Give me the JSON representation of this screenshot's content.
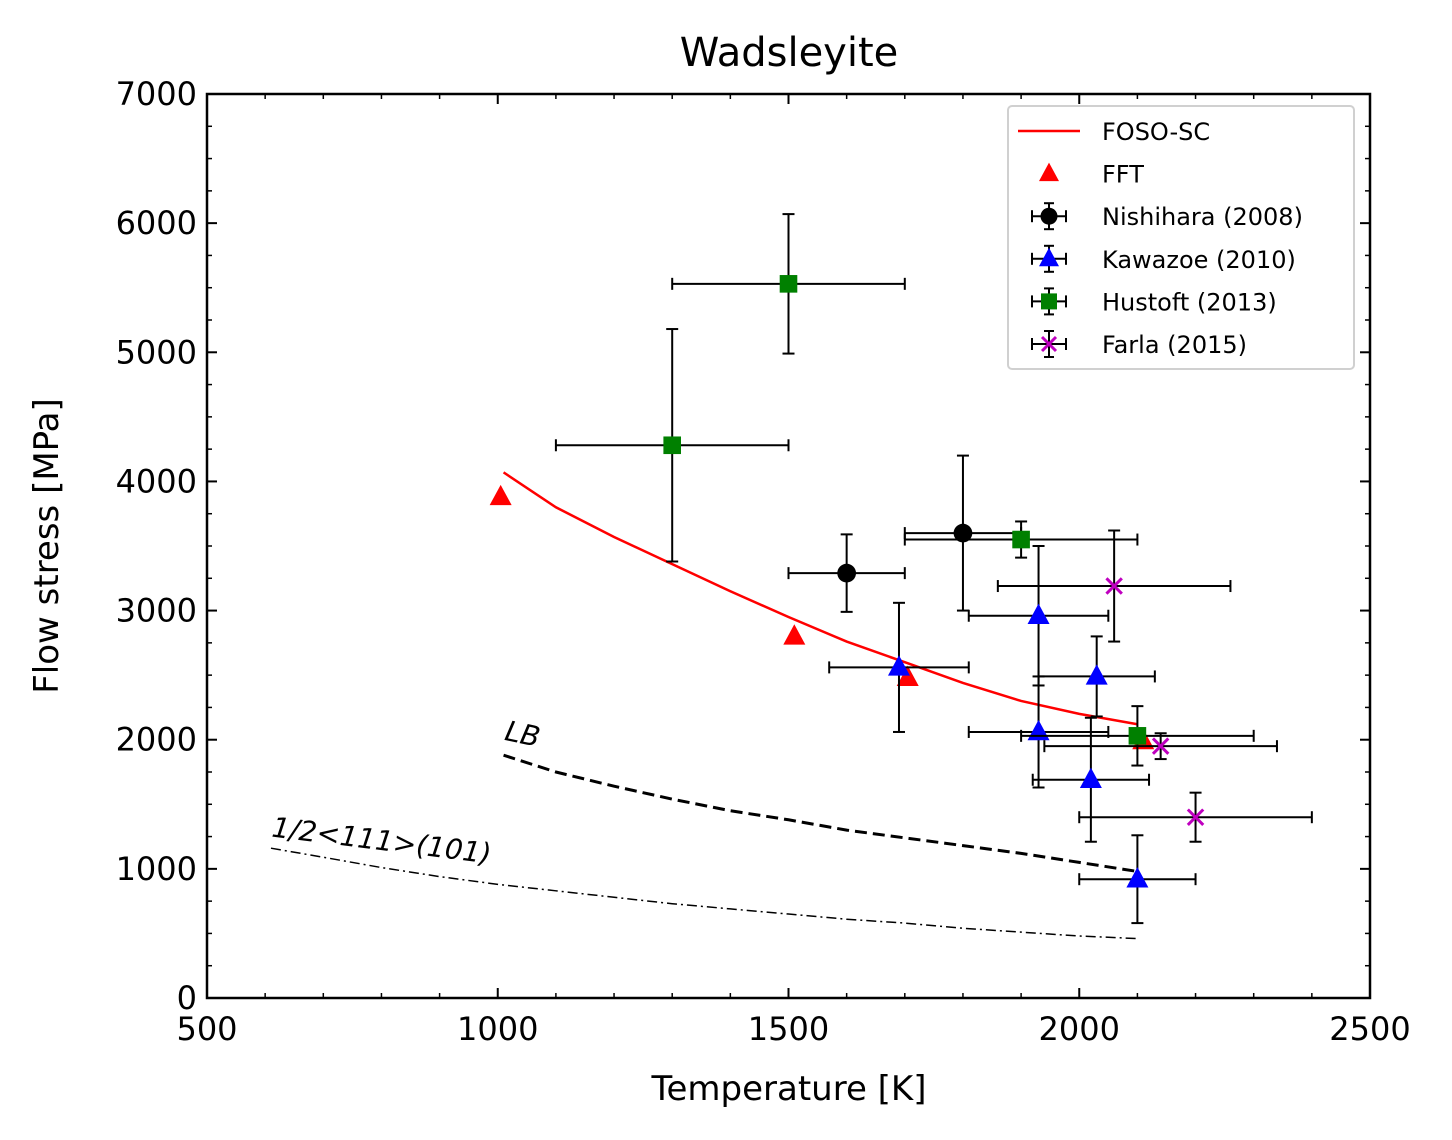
{
  "chart_data": {
    "type": "scatter",
    "title": "Wadsleyite",
    "xlabel": "Temperature [K]",
    "ylabel": "Flow stress [MPa]",
    "xlim": [
      500,
      2500
    ],
    "ylim": [
      0,
      7000
    ],
    "xticks": [
      500,
      1000,
      1500,
      2000,
      2500
    ],
    "yticks": [
      0,
      1000,
      2000,
      3000,
      4000,
      5000,
      6000,
      7000
    ],
    "xtick_labels": [
      "500",
      "1000",
      "1500",
      "2000",
      "2500"
    ],
    "ytick_labels": [
      "0",
      "1000",
      "2000",
      "3000",
      "4000",
      "5000",
      "6000",
      "7000"
    ],
    "legend_position": "top-right",
    "lines": [
      {
        "name": "FOSO-SC",
        "color": "#ff0000",
        "style": "solid",
        "x": [
          1010,
          1100,
          1200,
          1300,
          1400,
          1500,
          1600,
          1700,
          1800,
          1900,
          2000,
          2100
        ],
        "y": [
          4070,
          3800,
          3570,
          3360,
          3150,
          2950,
          2760,
          2600,
          2440,
          2300,
          2200,
          2120
        ]
      },
      {
        "name": "LB",
        "color": "#000000",
        "style": "dashed",
        "x": [
          1010,
          1100,
          1200,
          1300,
          1400,
          1500,
          1600,
          1700,
          1800,
          1900,
          2000,
          2100
        ],
        "y": [
          1880,
          1750,
          1640,
          1540,
          1450,
          1380,
          1300,
          1240,
          1180,
          1120,
          1050,
          980
        ]
      },
      {
        "name": "1/2<111>(101)",
        "color": "#000000",
        "style": "dashdot",
        "x": [
          610,
          700,
          800,
          900,
          1000,
          1100,
          1200,
          1300,
          1400,
          1500,
          1600,
          1700,
          1800,
          1900,
          2000,
          2100
        ],
        "y": [
          1160,
          1090,
          1010,
          940,
          880,
          830,
          780,
          730,
          690,
          650,
          610,
          580,
          540,
          510,
          480,
          460
        ]
      }
    ],
    "series": [
      {
        "name": "FFT",
        "marker": "triangle",
        "color": "#ff0000",
        "errorbars": false,
        "points": [
          {
            "x": 1005,
            "y": 3880
          },
          {
            "x": 1510,
            "y": 2800
          },
          {
            "x": 1705,
            "y": 2480
          },
          {
            "x": 2110,
            "y": 1990
          }
        ]
      },
      {
        "name": "Nishihara (2008)",
        "marker": "circle",
        "color": "#000000",
        "errorbars": true,
        "points": [
          {
            "x": 1600,
            "y": 3290,
            "xerr": 100,
            "yerr": 300
          },
          {
            "x": 1800,
            "y": 3600,
            "xerr": 100,
            "yerr": 600
          }
        ]
      },
      {
        "name": "Kawazoe (2010)",
        "marker": "triangle",
        "color": "#0000ff",
        "errorbars": true,
        "points": [
          {
            "x": 1690,
            "y": 2560,
            "xerr": 120,
            "yerr": 500
          },
          {
            "x": 1930,
            "y": 2960,
            "xerr": 120,
            "yerr": 540
          },
          {
            "x": 2030,
            "y": 2490,
            "xerr": 100,
            "yerr": 310
          },
          {
            "x": 1930,
            "y": 2060,
            "xerr": 120,
            "yerr": 430
          },
          {
            "x": 2020,
            "y": 1690,
            "xerr": 100,
            "yerr": 480
          },
          {
            "x": 2100,
            "y": 920,
            "xerr": 100,
            "yerr": 340
          }
        ]
      },
      {
        "name": "Hustoft (2013)",
        "marker": "square",
        "color": "#008000",
        "errorbars": true,
        "points": [
          {
            "x": 1500,
            "y": 5530,
            "xerr": 200,
            "yerr": 540
          },
          {
            "x": 1300,
            "y": 4280,
            "xerr": 200,
            "yerr": 900
          },
          {
            "x": 1900,
            "y": 3550,
            "xerr": 200,
            "yerr": 140
          },
          {
            "x": 2100,
            "y": 2030,
            "xerr": 200,
            "yerr": 230
          }
        ]
      },
      {
        "name": "Farla (2015)",
        "marker": "x",
        "color": "#bf00bf",
        "errorbars": true,
        "points": [
          {
            "x": 2060,
            "y": 3190,
            "xerr": 200,
            "yerr": 430
          },
          {
            "x": 2140,
            "y": 1950,
            "xerr": 200,
            "yerr": 100
          },
          {
            "x": 2200,
            "y": 1400,
            "xerr": 200,
            "yerr": 190
          }
        ]
      }
    ],
    "legend": [
      {
        "label": "FOSO-SC",
        "kind": "line",
        "color": "#ff0000"
      },
      {
        "label": "FFT",
        "kind": "triangle",
        "color": "#ff0000",
        "err": false
      },
      {
        "label": "Nishihara (2008)",
        "kind": "circle",
        "color": "#000000",
        "err": true
      },
      {
        "label": "Kawazoe (2010)",
        "kind": "triangle",
        "color": "#0000ff",
        "err": true
      },
      {
        "label": "Hustoft (2013)",
        "kind": "square",
        "color": "#008000",
        "err": true
      },
      {
        "label": "Farla (2015)",
        "kind": "x",
        "color": "#bf00bf",
        "err": true
      }
    ],
    "annotations": [
      {
        "text": "LB",
        "x": 1010,
        "y": 2000,
        "rotation_deg": 12
      },
      {
        "text": "1/2<111>(101)",
        "x": 610,
        "y": 1250,
        "rotation_deg": 7
      }
    ]
  }
}
